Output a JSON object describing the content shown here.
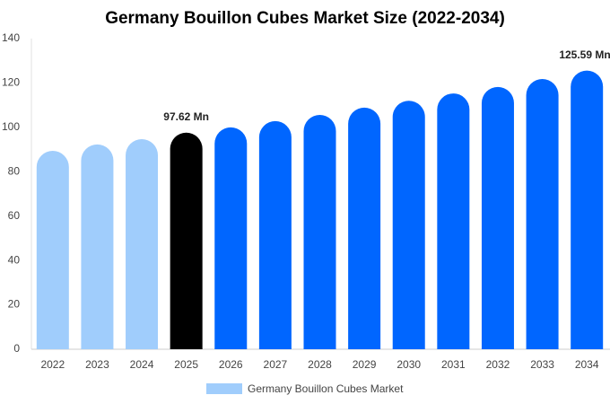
{
  "chart_data": {
    "type": "bar",
    "title": "Germany Bouillon Cubes Market Size (2022-2034)",
    "categories": [
      "2022",
      "2023",
      "2024",
      "2025",
      "2026",
      "2027",
      "2028",
      "2029",
      "2030",
      "2031",
      "2032",
      "2033",
      "2034"
    ],
    "series": [
      {
        "name": "Germany Bouillon Cubes Market",
        "color": "#a0cdfc",
        "values": [
          89.4,
          92.3,
          94.7,
          97.62,
          100.0,
          102.8,
          105.6,
          108.9,
          112.0,
          115.3,
          118.2,
          121.8,
          125.59
        ],
        "value_labels": [
          null,
          null,
          null,
          "97.62 Mn",
          null,
          null,
          null,
          null,
          null,
          null,
          null,
          null,
          "125.59 Mn"
        ],
        "colors": [
          "#a0cdfc",
          "#a0cdfc",
          "#a0cdfc",
          "#000000",
          "#0066ff",
          "#0066ff",
          "#0066ff",
          "#0066ff",
          "#0066ff",
          "#0066ff",
          "#0066ff",
          "#0066ff",
          "#0066ff"
        ]
      }
    ],
    "ylim": [
      0,
      140
    ],
    "yticks": [
      0,
      20,
      40,
      60,
      80,
      100,
      120,
      140
    ],
    "grid": false
  }
}
